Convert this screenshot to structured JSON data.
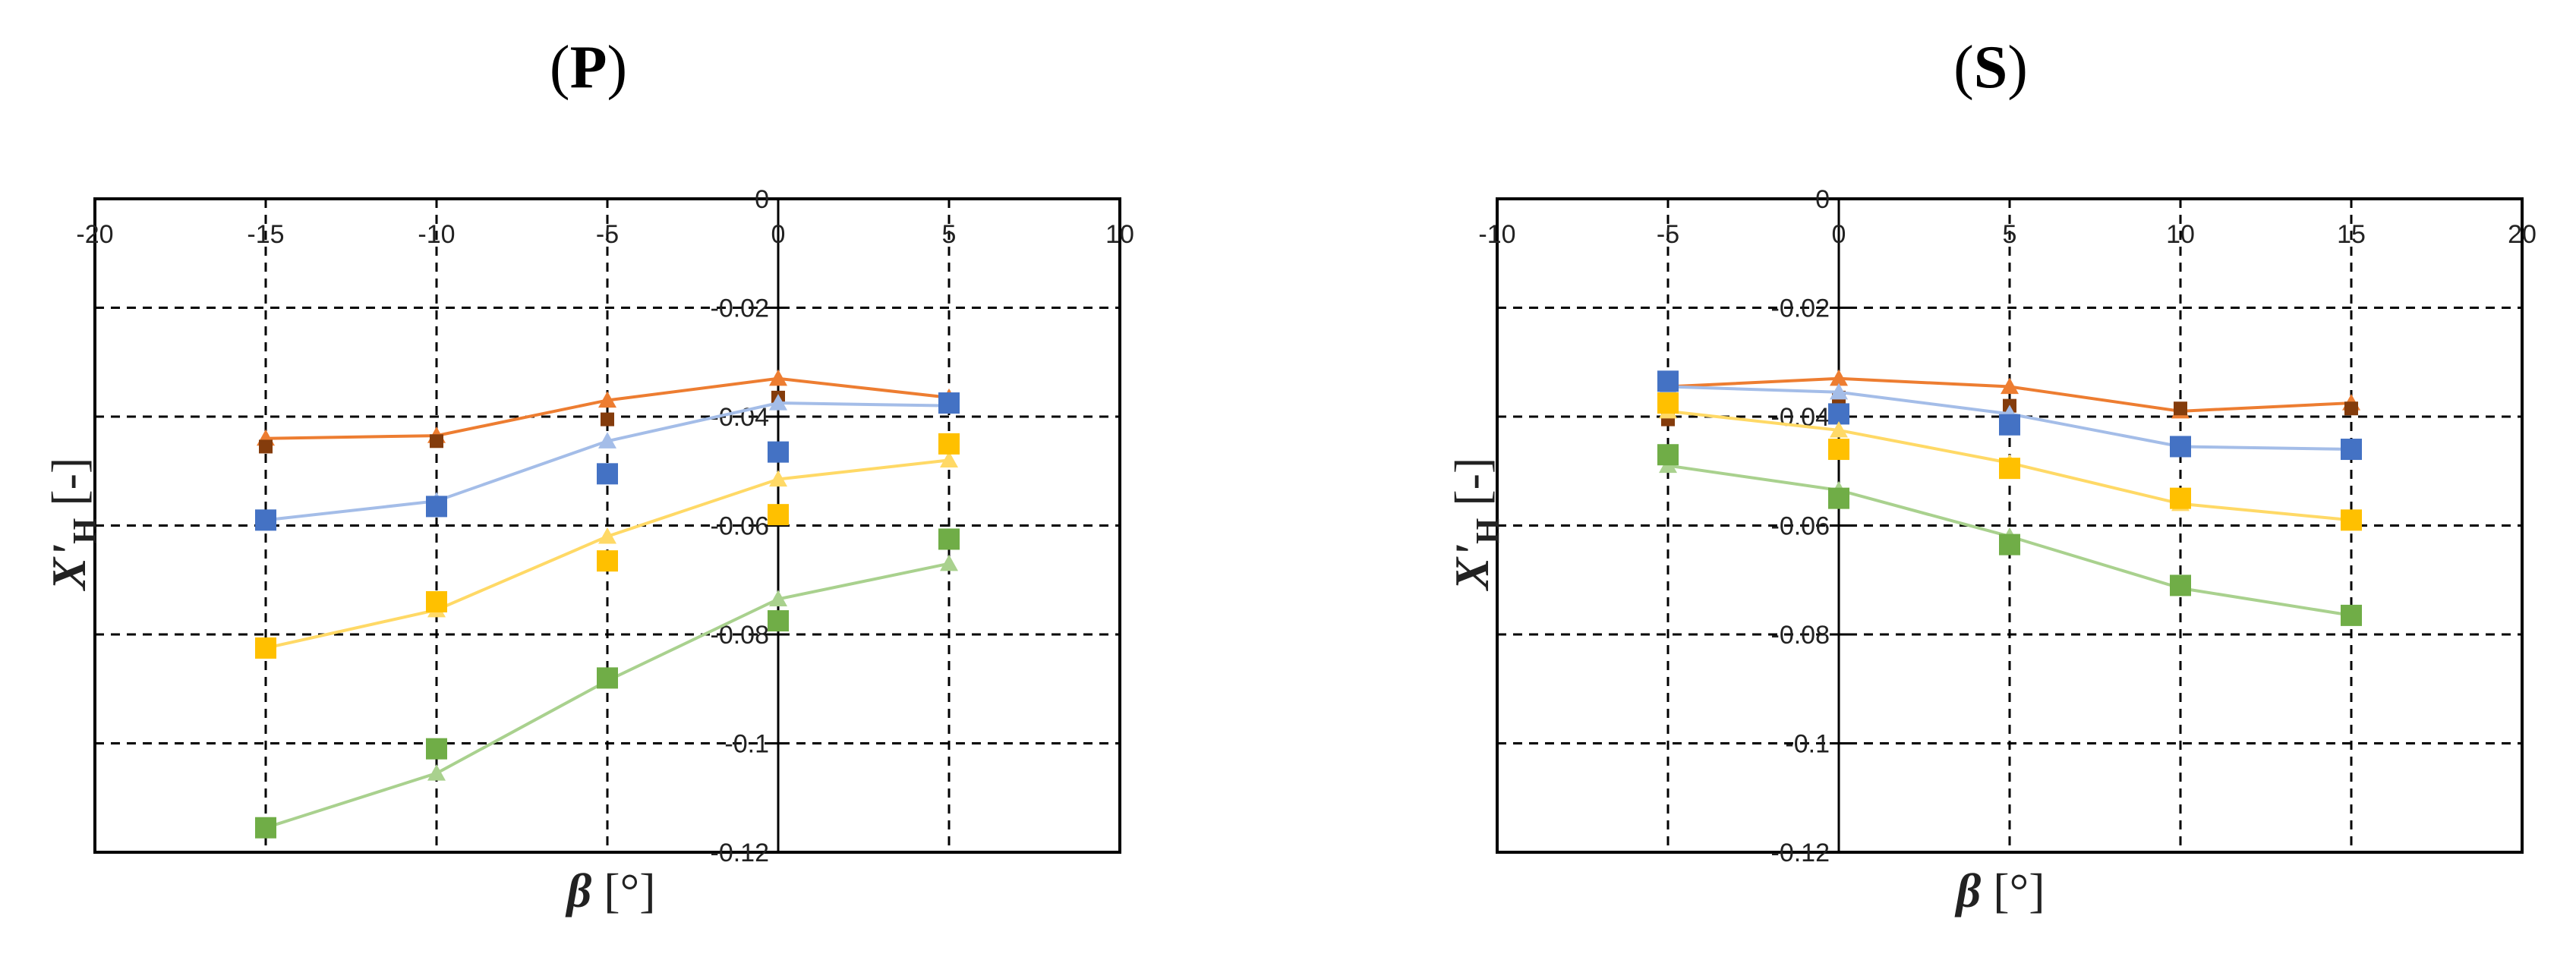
{
  "panels": [
    {
      "label": "P",
      "x_label_symbol": "β",
      "x_label_unit": "[°]",
      "y_label_symbol": "X'",
      "y_label_sub": "H",
      "y_label_unit": "[-]",
      "x_tick_labels": [
        "-20",
        "-15",
        "-10",
        "-5",
        "0",
        "5",
        "10"
      ],
      "y_tick_labels": [
        "0",
        "-0.02",
        "-0.04",
        "-0.06",
        "-0.08",
        "-0.1",
        "-0.12"
      ]
    },
    {
      "label": "S",
      "x_label_symbol": "β",
      "x_label_unit": "[°]",
      "y_label_symbol": "X'",
      "y_label_sub": "H",
      "y_label_unit": "[-]",
      "x_tick_labels": [
        "-10",
        "-5",
        "0",
        "5",
        "10",
        "15",
        "20"
      ],
      "y_tick_labels": [
        "0",
        "-0.02",
        "-0.04",
        "-0.06",
        "-0.08",
        "-0.1",
        "-0.12"
      ]
    }
  ],
  "colors": {
    "orange_line": "#ed7d31",
    "brown_marker": "#843c0c",
    "blue_line": "#a4bde8",
    "blue_marker": "#4472c4",
    "yellow_line": "#ffd966",
    "yellow_marker": "#ffc000",
    "green_line": "#a9d18e",
    "green_marker": "#70ad47",
    "grid": "#000000"
  },
  "chart_data": [
    {
      "type": "scatter",
      "title": "(P)",
      "xlabel": "β [°]",
      "ylabel": "X'H [-]",
      "xlim": [
        -20,
        10
      ],
      "ylim": [
        -0.12,
        0
      ],
      "x_ticks": [
        -20,
        -15,
        -10,
        -5,
        0,
        5,
        10
      ],
      "y_ticks": [
        0,
        -0.02,
        -0.04,
        -0.06,
        -0.08,
        -0.1,
        -0.12
      ],
      "grid": true,
      "x_axis_crosses_at": 0,
      "y_axis_crosses_at": 0,
      "series": [
        {
          "color": "orange",
          "kind": "line",
          "marker": "triangle",
          "x": [
            -15,
            -10,
            -5,
            0,
            5
          ],
          "y": [
            -0.044,
            -0.0435,
            -0.037,
            -0.033,
            -0.0365
          ]
        },
        {
          "color": "brown",
          "kind": "markers",
          "marker": "small-square",
          "x": [
            -15,
            -10,
            -5,
            0,
            5
          ],
          "y": [
            -0.0455,
            -0.0445,
            -0.0405,
            -0.0365,
            -0.038
          ]
        },
        {
          "color": "blue",
          "kind": "line",
          "marker": "triangle",
          "x": [
            -15,
            -10,
            -5,
            0,
            5
          ],
          "y": [
            -0.059,
            -0.0555,
            -0.0445,
            -0.0375,
            -0.038
          ]
        },
        {
          "color": "blue",
          "kind": "markers",
          "marker": "square",
          "x": [
            -15,
            -10,
            -5,
            0,
            5
          ],
          "y": [
            -0.059,
            -0.0565,
            -0.0505,
            -0.0465,
            -0.0375
          ]
        },
        {
          "color": "yellow",
          "kind": "line",
          "marker": "triangle",
          "x": [
            -15,
            -10,
            -5,
            0,
            5
          ],
          "y": [
            -0.0825,
            -0.0755,
            -0.062,
            -0.0515,
            -0.048
          ]
        },
        {
          "color": "yellow",
          "kind": "markers",
          "marker": "square",
          "x": [
            -15,
            -10,
            -5,
            0,
            5
          ],
          "y": [
            -0.0825,
            -0.074,
            -0.0665,
            -0.058,
            -0.045
          ]
        },
        {
          "color": "green",
          "kind": "line",
          "marker": "triangle",
          "x": [
            -15,
            -10,
            -5,
            0,
            5
          ],
          "y": [
            -0.1155,
            -0.1055,
            -0.0885,
            -0.0735,
            -0.067
          ]
        },
        {
          "color": "green",
          "kind": "markers",
          "marker": "square",
          "x": [
            -15,
            -10,
            -5,
            0,
            5
          ],
          "y": [
            -0.1155,
            -0.101,
            -0.088,
            -0.0775,
            -0.0625
          ]
        }
      ]
    },
    {
      "type": "scatter",
      "title": "(S)",
      "xlabel": "β [°]",
      "ylabel": "X'H [-]",
      "xlim": [
        -10,
        20
      ],
      "ylim": [
        -0.12,
        0
      ],
      "x_ticks": [
        -10,
        -5,
        0,
        5,
        10,
        15,
        20
      ],
      "y_ticks": [
        0,
        -0.02,
        -0.04,
        -0.06,
        -0.08,
        -0.1,
        -0.12
      ],
      "grid": true,
      "x_axis_crosses_at": 0,
      "y_axis_crosses_at": 0,
      "series": [
        {
          "color": "orange",
          "kind": "line",
          "marker": "triangle",
          "x": [
            -5,
            0,
            5,
            10,
            15
          ],
          "y": [
            -0.0345,
            -0.033,
            -0.0345,
            -0.039,
            -0.0375
          ]
        },
        {
          "color": "brown",
          "kind": "markers",
          "marker": "small-square",
          "x": [
            -5,
            0,
            5,
            10,
            15
          ],
          "y": [
            -0.0405,
            -0.0365,
            -0.038,
            -0.0385,
            -0.0385
          ]
        },
        {
          "color": "blue",
          "kind": "line",
          "marker": "triangle",
          "x": [
            -5,
            0,
            5,
            10,
            15
          ],
          "y": [
            -0.0345,
            -0.0355,
            -0.0395,
            -0.0455,
            -0.046
          ]
        },
        {
          "color": "blue",
          "kind": "markers",
          "marker": "square",
          "x": [
            -5,
            0,
            5,
            10,
            15
          ],
          "y": [
            -0.0335,
            -0.0395,
            -0.0415,
            -0.0455,
            -0.046
          ]
        },
        {
          "color": "yellow",
          "kind": "line",
          "marker": "triangle",
          "x": [
            -5,
            0,
            5,
            10,
            15
          ],
          "y": [
            -0.039,
            -0.0425,
            -0.0485,
            -0.056,
            -0.059
          ]
        },
        {
          "color": "yellow",
          "kind": "markers",
          "marker": "square",
          "x": [
            -5,
            0,
            5,
            10,
            15
          ],
          "y": [
            -0.0375,
            -0.046,
            -0.0495,
            -0.055,
            -0.059
          ]
        },
        {
          "color": "green",
          "kind": "line",
          "marker": "triangle",
          "x": [
            -5,
            0,
            5,
            10,
            15
          ],
          "y": [
            -0.049,
            -0.0535,
            -0.062,
            -0.0715,
            -0.0765
          ]
        },
        {
          "color": "green",
          "kind": "markers",
          "marker": "square",
          "x": [
            -5,
            0,
            5,
            10,
            15
          ],
          "y": [
            -0.047,
            -0.055,
            -0.0635,
            -0.071,
            -0.0765
          ]
        }
      ]
    }
  ]
}
